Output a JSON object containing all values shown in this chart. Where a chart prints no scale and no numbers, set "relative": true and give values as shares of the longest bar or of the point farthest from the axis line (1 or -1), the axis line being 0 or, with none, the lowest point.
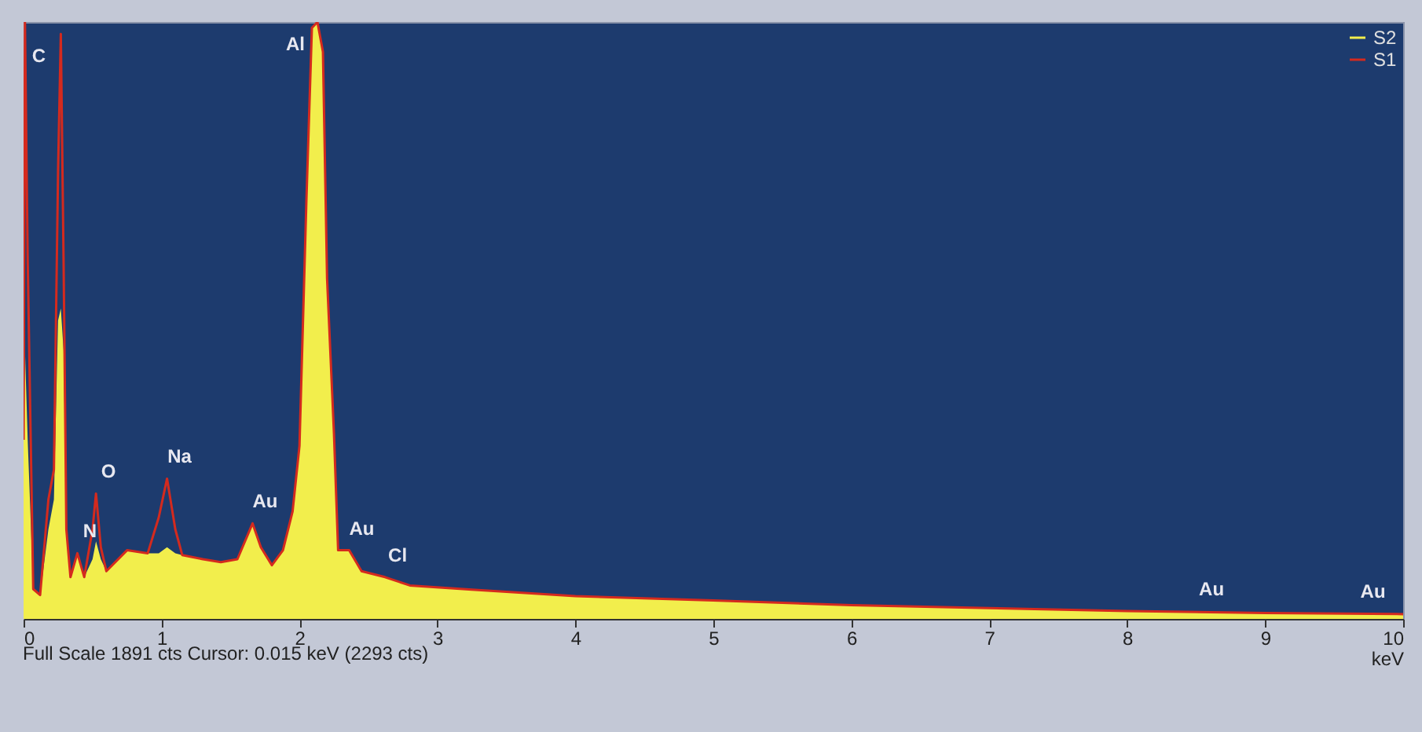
{
  "chart_data": {
    "type": "area",
    "relative": true,
    "xlabel": "keV",
    "xlim": [
      0,
      10
    ],
    "xticks": [
      0,
      1,
      2,
      3,
      4,
      5,
      6,
      7,
      8,
      9,
      10
    ],
    "legend": "top right",
    "grid": false,
    "marker": "none",
    "x": [
      0,
      0.01,
      0.03,
      0.07,
      0.12,
      0.18,
      0.22,
      0.25,
      0.27,
      0.29,
      0.31,
      0.34,
      0.39,
      0.44,
      0.5,
      0.525,
      0.56,
      0.6,
      0.75,
      0.9,
      0.98,
      1.04,
      1.1,
      1.15,
      1.3,
      1.43,
      1.55,
      1.66,
      1.72,
      1.8,
      1.88,
      1.95,
      2.0,
      2.05,
      2.09,
      2.13,
      2.17,
      2.2,
      2.25,
      2.28,
      2.36,
      2.45,
      2.62,
      2.8,
      3.25,
      4,
      5,
      6,
      7,
      8,
      9,
      10
    ],
    "series": [
      {
        "name": "S2",
        "color": "#f2ee4c",
        "values": [
          0.3,
          0.45,
          0.3,
          0.05,
          0.04,
          0.15,
          0.2,
          0.5,
          0.52,
          0.45,
          0.15,
          0.07,
          0.11,
          0.07,
          0.1,
          0.13,
          0.1,
          0.08,
          0.115,
          0.11,
          0.11,
          0.12,
          0.11,
          0.107,
          0.1,
          0.095,
          0.1,
          0.16,
          0.12,
          0.09,
          0.115,
          0.18,
          0.29,
          0.7,
          0.99,
          1.0,
          0.95,
          0.57,
          0.31,
          0.115,
          0.115,
          0.08,
          0.07,
          0.056,
          0.049,
          0.038,
          0.031,
          0.023,
          0.018,
          0.013,
          0.01,
          0.008
        ]
      },
      {
        "name": "S1",
        "type": "line",
        "color": "#d42a1e",
        "values": [
          0.3,
          1.0,
          0.6,
          0.05,
          0.04,
          0.2,
          0.25,
          0.75,
          0.98,
          0.6,
          0.15,
          0.07,
          0.11,
          0.07,
          0.15,
          0.21,
          0.12,
          0.08,
          0.115,
          0.11,
          0.17,
          0.235,
          0.15,
          0.107,
          0.1,
          0.095,
          0.1,
          0.16,
          0.12,
          0.09,
          0.115,
          0.18,
          0.29,
          0.7,
          0.99,
          1.0,
          0.95,
          0.57,
          0.31,
          0.115,
          0.115,
          0.08,
          0.07,
          0.056,
          0.049,
          0.038,
          0.031,
          0.023,
          0.018,
          0.013,
          0.01,
          0.008
        ]
      }
    ],
    "annotations": [
      {
        "text": "C",
        "x": 0.27,
        "y": 0.98
      },
      {
        "text": "N",
        "x": 0.39,
        "y": 0.11
      },
      {
        "text": "O",
        "x": 0.525,
        "y": 0.21
      },
      {
        "text": "Na",
        "x": 1.04,
        "y": 0.235
      },
      {
        "text": "Au",
        "x": 1.66,
        "y": 0.16
      },
      {
        "text": "Al",
        "x": 2.13,
        "y": 1.0
      },
      {
        "text": "Au",
        "x": 2.36,
        "y": 0.115
      },
      {
        "text": "Cl",
        "x": 2.62,
        "y": 0.07
      },
      {
        "text": "Au",
        "x": 8.52,
        "y": 0.013
      },
      {
        "text": "Au",
        "x": 9.69,
        "y": 0.009
      },
      "Full Scale 1891 cts  Cursor: 0.015 keV (2293 cts)"
    ]
  }
}
